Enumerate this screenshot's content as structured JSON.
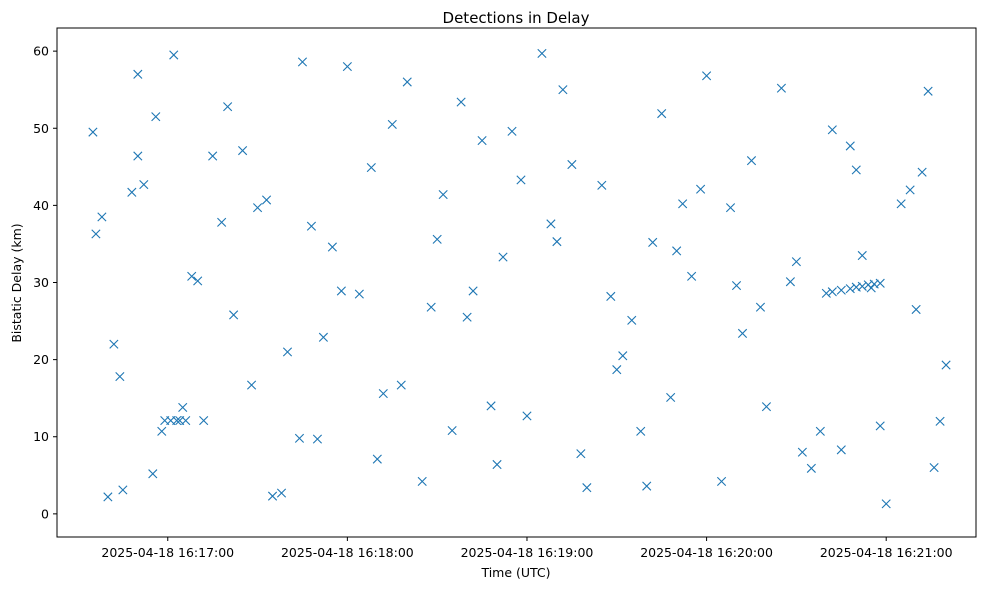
{
  "chart_data": {
    "type": "scatter",
    "title": "Detections in Delay",
    "xlabel": "Time (UTC)",
    "ylabel": "Bistatic Delay (km)",
    "x_tick_labels": [
      "2025-04-18 16:17:00",
      "2025-04-18 16:18:00",
      "2025-04-18 16:19:00",
      "2025-04-18 16:20:00",
      "2025-04-18 16:21:00"
    ],
    "y_ticks": [
      0,
      10,
      20,
      30,
      40,
      50,
      60
    ],
    "xlim": [
      "2025-04-18 16:16:23",
      "2025-04-18 16:21:30"
    ],
    "ylim": [
      -3,
      63
    ],
    "marker": "x",
    "color": "#1f77b4",
    "grid": false,
    "series": [
      {
        "x": [
          "2025-04-18 16:16:35",
          "2025-04-18 16:16:38",
          "2025-04-18 16:16:40",
          "2025-04-18 16:16:45",
          "2025-04-18 16:16:50",
          "2025-04-18 16:16:52",
          "2025-04-18 16:16:58",
          "2025-04-18 16:17:02",
          "2025-04-18 16:17:08",
          "2025-04-18 16:17:12",
          "2025-04-18 16:17:20",
          "2025-04-18 16:17:25",
          "2025-04-18 16:17:28",
          "2025-04-18 16:17:33",
          "2025-04-18 16:17:38",
          "2025-04-18 16:17:45",
          "2025-04-18 16:17:50",
          "2025-04-18 16:17:55",
          "2025-04-18 16:18:00",
          "2025-04-18 16:18:04",
          "2025-04-18 16:18:10",
          "2025-04-18 16:18:15",
          "2025-04-18 16:18:20",
          "2025-04-18 16:18:25",
          "2025-04-18 16:18:30",
          "2025-04-18 16:18:35",
          "2025-04-18 16:18:40",
          "2025-04-18 16:18:45",
          "2025-04-18 16:18:50",
          "2025-04-18 16:18:55",
          "2025-04-18 16:19:00",
          "2025-04-18 16:19:05",
          "2025-04-18 16:19:10",
          "2025-04-18 16:19:15",
          "2025-04-18 16:19:20",
          "2025-04-18 16:19:25",
          "2025-04-18 16:19:30",
          "2025-04-18 16:19:35",
          "2025-04-18 16:19:40",
          "2025-04-18 16:19:45",
          "2025-04-18 16:19:50",
          "2025-04-18 16:19:55",
          "2025-04-18 16:20:00",
          "2025-04-18 16:20:05",
          "2025-04-18 16:20:10",
          "2025-04-18 16:20:15",
          "2025-04-18 16:20:20",
          "2025-04-18 16:20:25",
          "2025-04-18 16:20:30",
          "2025-04-18 16:20:35",
          "2025-04-18 16:20:40",
          "2025-04-18 16:20:45",
          "2025-04-18 16:20:50",
          "2025-04-18 16:20:55",
          "2025-04-18 16:21:00",
          "2025-04-18 16:21:05",
          "2025-04-18 16:21:10",
          "2025-04-18 16:21:14",
          "2025-04-18 16:21:18",
          "2025-04-18 16:21:20",
          "2025-04-18 16:16:42",
          "2025-04-18 16:16:48",
          "2025-04-18 16:16:55",
          "2025-04-18 16:17:05",
          "2025-04-18 16:17:15",
          "2025-04-18 16:17:22",
          "2025-04-18 16:17:30",
          "2025-04-18 16:17:40",
          "2025-04-18 16:17:48",
          "2025-04-18 16:17:58",
          "2025-04-18 16:18:08",
          "2025-04-18 16:18:18",
          "2025-04-18 16:18:28",
          "2025-04-18 16:18:38",
          "2025-04-18 16:18:48",
          "2025-04-18 16:18:58",
          "2025-04-18 16:19:08",
          "2025-04-18 16:19:18",
          "2025-04-18 16:19:28",
          "2025-04-18 16:19:38",
          "2025-04-18 16:19:48",
          "2025-04-18 16:19:58",
          "2025-04-18 16:20:08",
          "2025-04-18 16:20:18",
          "2025-04-18 16:20:28",
          "2025-04-18 16:20:38",
          "2025-04-18 16:20:48",
          "2025-04-18 16:20:58",
          "2025-04-18 16:21:08",
          "2025-04-18 16:21:16",
          "2025-04-18 16:16:36",
          "2025-04-18 16:16:44",
          "2025-04-18 16:16:56",
          "2025-04-18 16:17:10",
          "2025-04-18 16:17:18",
          "2025-04-18 16:17:35",
          "2025-04-18 16:17:52",
          "2025-04-18 16:18:12",
          "2025-04-18 16:18:32",
          "2025-04-18 16:18:52",
          "2025-04-18 16:19:12",
          "2025-04-18 16:19:32",
          "2025-04-18 16:19:52",
          "2025-04-18 16:20:12",
          "2025-04-18 16:20:32",
          "2025-04-18 16:20:52",
          "2025-04-18 16:21:12",
          "2025-04-18 16:16:50",
          "2025-04-18 16:17:44",
          "2025-04-18 16:18:42",
          "2025-04-18 16:19:42",
          "2025-04-18 16:20:42",
          "2025-04-18 16:16:59",
          "2025-04-18 16:17:01",
          "2025-04-18 16:17:03",
          "2025-04-18 16:17:04",
          "2025-04-18 16:17:06",
          "2025-04-18 16:20:42",
          "2025-04-18 16:20:45",
          "2025-04-18 16:20:48",
          "2025-04-18 16:20:50",
          "2025-04-18 16:20:52",
          "2025-04-18 16:20:54",
          "2025-04-18 16:20:56",
          "2025-04-18 16:20:58"
        ],
        "y": [
          49.5,
          38.5,
          2.2,
          3.1,
          46.4,
          42.7,
          10.7,
          59.5,
          30.8,
          12.1,
          52.8,
          47.1,
          16.7,
          40.7,
          2.7,
          58.6,
          9.7,
          34.6,
          58.0,
          28.5,
          7.1,
          50.5,
          56.0,
          4.2,
          35.6,
          10.8,
          25.5,
          48.4,
          6.4,
          49.6,
          12.7,
          59.7,
          35.3,
          45.3,
          3.4,
          42.6,
          18.7,
          25.1,
          3.6,
          51.9,
          34.1,
          30.8,
          56.8,
          4.2,
          29.6,
          45.8,
          13.9,
          55.2,
          32.7,
          5.9,
          28.6,
          8.3,
          44.6,
          29.3,
          1.3,
          40.2,
          26.5,
          54.8,
          12.0,
          19.3,
          22.0,
          41.7,
          5.2,
          13.8,
          46.4,
          25.8,
          39.7,
          21.0,
          37.3,
          28.9,
          44.9,
          16.7,
          26.8,
          53.4,
          14.0,
          43.3,
          37.6,
          7.8,
          28.2,
          10.7,
          15.1,
          42.1,
          39.7,
          26.8,
          30.1,
          10.7,
          47.7,
          11.4,
          42.0,
          6.0,
          36.3,
          17.8,
          51.5,
          30.2,
          37.8,
          2.3,
          22.9,
          15.6,
          41.4,
          33.3,
          55.0,
          20.5,
          40.2,
          23.4,
          8.0,
          33.5,
          44.3,
          57.0,
          9.8,
          28.9,
          35.2,
          49.8,
          12.1,
          12.1,
          12.1,
          12.1,
          12.1,
          28.8,
          29.0,
          29.2,
          29.4,
          29.5,
          29.7,
          29.8,
          29.9
        ]
      }
    ]
  }
}
